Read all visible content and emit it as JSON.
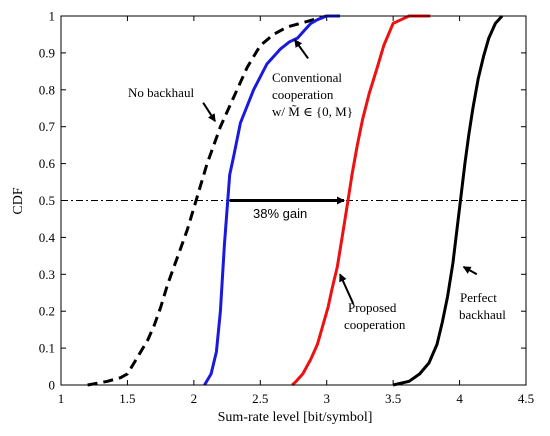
{
  "chart_data": {
    "type": "line",
    "xlabel": "Sum-rate level [bit/symbol]",
    "ylabel": "CDF",
    "xlim": [
      1,
      4.5
    ],
    "ylim": [
      0,
      1
    ],
    "x_ticks": [
      "1",
      "1.5",
      "2",
      "2.5",
      "3",
      "3.5",
      "4",
      "4.5"
    ],
    "y_ticks": [
      "0",
      "0.1",
      "0.2",
      "0.3",
      "0.4",
      "0.5",
      "0.6",
      "0.7",
      "0.8",
      "0.9",
      "1"
    ],
    "grid": false,
    "reference_line": {
      "y": 0.5,
      "style": "dash-dot",
      "color": "#000000"
    },
    "series": [
      {
        "key": "no-backhaul",
        "color": "#000000",
        "dash": true,
        "points": [
          [
            1.2,
            0
          ],
          [
            1.35,
            0.01
          ],
          [
            1.45,
            0.02
          ],
          [
            1.5,
            0.03
          ],
          [
            1.55,
            0.06
          ],
          [
            1.6,
            0.09
          ],
          [
            1.65,
            0.12
          ],
          [
            1.7,
            0.16
          ],
          [
            1.75,
            0.21
          ],
          [
            1.8,
            0.27
          ],
          [
            1.85,
            0.32
          ],
          [
            1.9,
            0.37
          ],
          [
            1.95,
            0.42
          ],
          [
            2.0,
            0.48
          ],
          [
            2.05,
            0.54
          ],
          [
            2.1,
            0.6
          ],
          [
            2.15,
            0.65
          ],
          [
            2.2,
            0.7
          ],
          [
            2.25,
            0.74
          ],
          [
            2.3,
            0.78
          ],
          [
            2.35,
            0.82
          ],
          [
            2.4,
            0.86
          ],
          [
            2.45,
            0.89
          ],
          [
            2.5,
            0.92
          ],
          [
            2.6,
            0.95
          ],
          [
            2.7,
            0.97
          ],
          [
            2.8,
            0.98
          ],
          [
            2.9,
            0.99
          ],
          [
            3.0,
            1.0
          ]
        ]
      },
      {
        "key": "conventional",
        "color": "#1a1adc",
        "dash": false,
        "points": [
          [
            2.08,
            0
          ],
          [
            2.13,
            0.03
          ],
          [
            2.17,
            0.09
          ],
          [
            2.2,
            0.2
          ],
          [
            2.23,
            0.38
          ],
          [
            2.27,
            0.57
          ],
          [
            2.3,
            0.62
          ],
          [
            2.35,
            0.71
          ],
          [
            2.45,
            0.8
          ],
          [
            2.55,
            0.87
          ],
          [
            2.65,
            0.91
          ],
          [
            2.72,
            0.93
          ],
          [
            2.78,
            0.94
          ],
          [
            2.83,
            0.96
          ],
          [
            2.88,
            0.98
          ],
          [
            2.93,
            0.99
          ],
          [
            3.0,
            1.0
          ],
          [
            3.1,
            1.0
          ]
        ]
      },
      {
        "key": "proposed",
        "color": "#ee1111",
        "dash": false,
        "points": [
          [
            2.74,
            0
          ],
          [
            2.77,
            0.01
          ],
          [
            2.82,
            0.03
          ],
          [
            2.88,
            0.07
          ],
          [
            2.93,
            0.11
          ],
          [
            2.97,
            0.16
          ],
          [
            3.01,
            0.21
          ],
          [
            3.04,
            0.26
          ],
          [
            3.08,
            0.32
          ],
          [
            3.12,
            0.41
          ],
          [
            3.16,
            0.5
          ],
          [
            3.19,
            0.57
          ],
          [
            3.23,
            0.65
          ],
          [
            3.27,
            0.72
          ],
          [
            3.32,
            0.79
          ],
          [
            3.38,
            0.86
          ],
          [
            3.43,
            0.92
          ],
          [
            3.5,
            0.98
          ],
          [
            3.56,
            0.99
          ],
          [
            3.62,
            1.0
          ],
          [
            3.78,
            1.0
          ]
        ]
      },
      {
        "key": "perfect",
        "color": "#000000",
        "dash": false,
        "points": [
          [
            3.5,
            0
          ],
          [
            3.62,
            0.01
          ],
          [
            3.7,
            0.03
          ],
          [
            3.77,
            0.06
          ],
          [
            3.83,
            0.11
          ],
          [
            3.87,
            0.17
          ],
          [
            3.91,
            0.24
          ],
          [
            3.95,
            0.33
          ],
          [
            3.98,
            0.42
          ],
          [
            4.01,
            0.51
          ],
          [
            4.04,
            0.6
          ],
          [
            4.07,
            0.68
          ],
          [
            4.1,
            0.75
          ],
          [
            4.14,
            0.83
          ],
          [
            4.18,
            0.89
          ],
          [
            4.22,
            0.94
          ],
          [
            4.27,
            0.98
          ],
          [
            4.32,
            1.0
          ]
        ]
      }
    ],
    "annotations": {
      "no_backhaul": [
        "No backhaul"
      ],
      "conventional": [
        "Conventional",
        "cooperation",
        "w/ M̃ ∈ {0, M}"
      ],
      "proposed": [
        "Proposed",
        "cooperation"
      ],
      "perfect": [
        "Perfect",
        "backhaul"
      ],
      "gain": "38% gain"
    }
  }
}
